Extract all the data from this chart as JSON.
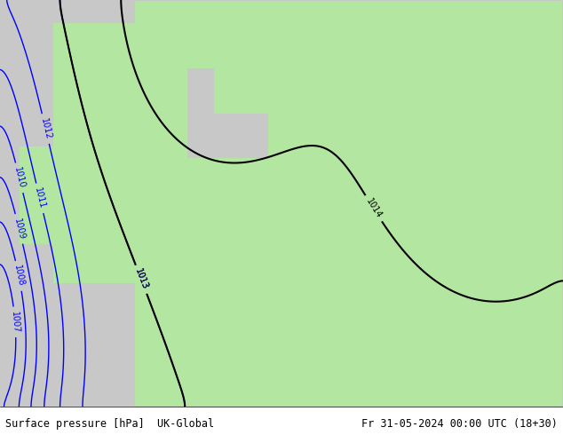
{
  "title_left": "Surface pressure [hPa]  UK-Global",
  "title_right": "Fr 31-05-2024 00:00 UTC (18+30)",
  "bg_color_land": "#b3e6a0",
  "bg_color_sea": "#d3d3d3",
  "bg_color_outer": "#c8c8c8",
  "contour_color_blue": "#0000ff",
  "contour_color_black": "#000000",
  "contour_color_red": "#ff0000",
  "label_fontsize": 7,
  "title_fontsize": 8.5,
  "figsize": [
    6.34,
    4.9
  ],
  "dpi": 100
}
